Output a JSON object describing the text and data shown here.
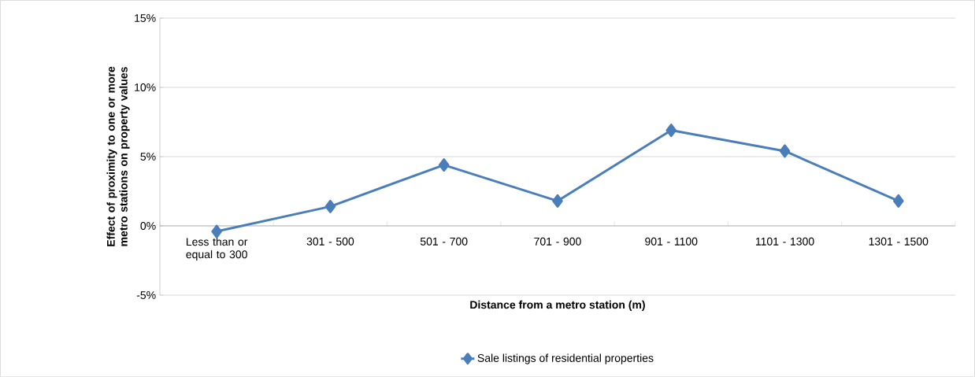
{
  "chart_data": {
    "type": "line",
    "xlabel": "Distance from a metro station (m)",
    "ylabel": "Effect of proximity to one or more metro stations on property values",
    "categories": [
      "Less than or equal to 300",
      "301 - 500",
      "501 - 700",
      "701 - 900",
      "901 - 1100",
      "1101 - 1300",
      "1301 - 1500"
    ],
    "series": [
      {
        "name": "Sale listings of residential properties",
        "color": "#4a7ebb",
        "values": [
          -0.4,
          1.4,
          4.4,
          1.8,
          6.9,
          5.4,
          1.8
        ]
      }
    ],
    "ylim": [
      -5,
      15
    ],
    "yticks": [
      {
        "value": -5,
        "label": "-5%"
      },
      {
        "value": 0,
        "label": "0%"
      },
      {
        "value": 5,
        "label": "5%"
      },
      {
        "value": 10,
        "label": "10%"
      },
      {
        "value": 15,
        "label": "15%"
      }
    ],
    "grid": "y",
    "legend": "bottom",
    "marker": "diamond",
    "line_style": "solid"
  }
}
